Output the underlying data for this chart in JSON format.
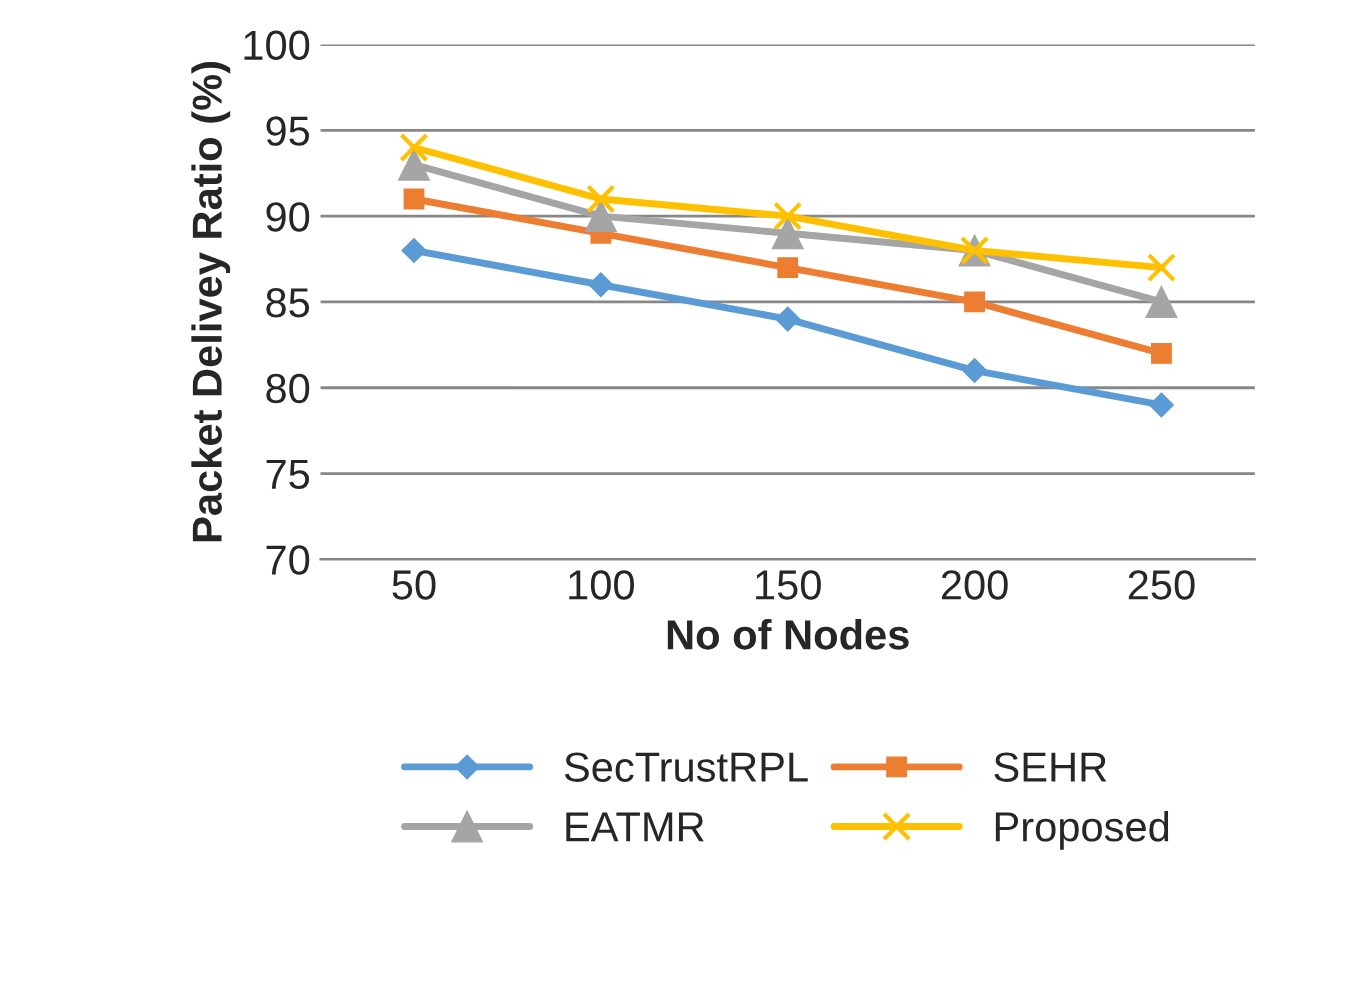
{
  "chart_data": {
    "type": "line",
    "xlabel": "No of Nodes",
    "ylabel": "Packet Delivey Ratio (%)",
    "categories": [
      "50",
      "100",
      "150",
      "200",
      "250"
    ],
    "series": [
      {
        "name": "SecTrustRPL",
        "color": "#5b9bd5",
        "marker": "diamond",
        "values": [
          88,
          86,
          84,
          81,
          79
        ]
      },
      {
        "name": "SEHR",
        "color": "#ed7d31",
        "marker": "square",
        "values": [
          91,
          89,
          87,
          85,
          82
        ]
      },
      {
        "name": "EATMR",
        "color": "#a5a5a5",
        "marker": "triangle",
        "values": [
          93,
          90,
          89,
          88,
          85
        ]
      },
      {
        "name": "Proposed",
        "color": "#ffc000",
        "marker": "cross",
        "values": [
          94,
          91,
          90,
          88,
          87
        ]
      }
    ],
    "ylim": [
      70,
      100
    ],
    "yticks": [
      70,
      75,
      80,
      85,
      90,
      95,
      100
    ],
    "grid": "y",
    "legend": "bottom"
  }
}
